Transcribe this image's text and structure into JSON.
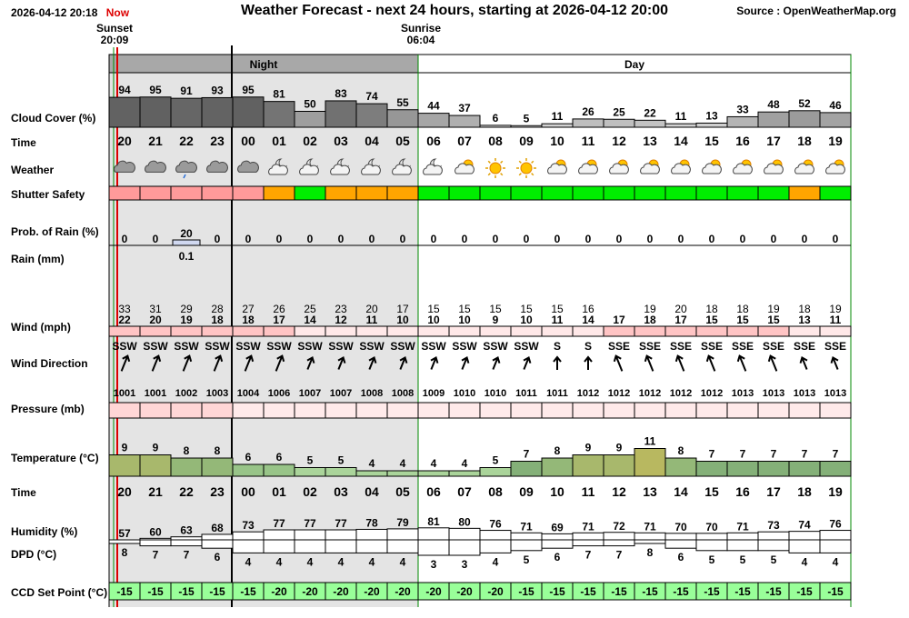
{
  "header": {
    "datetime": "2026-04-12 20:18",
    "now_label": "Now",
    "title": "Weather Forecast - next 24 hours, starting at 2026-04-12 20:00",
    "source": "Source : OpenWeatherMap.org",
    "sunset_label": "Sunset",
    "sunset_time": "20:09",
    "sunrise_label": "Sunrise",
    "sunrise_time": "06:04",
    "night_label": "Night",
    "day_label": "Day"
  },
  "row_labels": {
    "cloud": "Cloud Cover (%)",
    "time1": "Time",
    "weather": "Weather",
    "shutter": "Shutter Safety",
    "rain_prob": "Prob. of Rain (%)",
    "rain_mm": "Rain (mm)",
    "wind": "Wind (mph)",
    "wind_dir": "Wind Direction",
    "pressure": "Pressure (mb)",
    "temperature": "Temperature (°C)",
    "time2": "Time",
    "humidity": "Humidity (%)",
    "dpd": "DPD (°C)",
    "ccd": "CCD Set Point (°C)"
  },
  "colors": {
    "night_bg": "#e4e4e4",
    "shutter_red": "#ff9a9a",
    "shutter_orange": "#ffa500",
    "shutter_green": "#00ee00",
    "wind_high": "#ffc4c4",
    "wind_low": "#ffe8e8",
    "pressure_fill": "#ffeaea",
    "ccd_fill": "#99ff99",
    "now_line": "#dd0000",
    "sunset_line": "#008800"
  },
  "chart_data": {
    "type": "table",
    "hours": [
      "20",
      "21",
      "22",
      "23",
      "00",
      "01",
      "02",
      "03",
      "04",
      "05",
      "06",
      "07",
      "08",
      "09",
      "10",
      "11",
      "12",
      "13",
      "14",
      "15",
      "16",
      "17",
      "18",
      "19"
    ],
    "night": [
      true,
      true,
      true,
      true,
      true,
      true,
      true,
      true,
      true,
      true,
      false,
      false,
      false,
      false,
      false,
      false,
      false,
      false,
      false,
      false,
      false,
      false,
      false,
      false
    ],
    "cloud_cover": [
      94,
      95,
      91,
      93,
      95,
      81,
      50,
      83,
      74,
      55,
      44,
      37,
      6,
      5,
      11,
      26,
      25,
      22,
      11,
      13,
      33,
      48,
      52,
      46
    ],
    "weather_icons": [
      "cloud-icon",
      "cloud-icon",
      "rain-cloud-icon",
      "cloud-icon",
      "cloud-icon",
      "moon-cloud-icon",
      "moon-cloud-icon",
      "moon-cloud-icon",
      "moon-cloud-icon",
      "moon-cloud-icon",
      "moon-cloud-icon",
      "sun-cloud-icon",
      "sun-icon",
      "sun-icon",
      "sun-cloud-icon",
      "sun-cloud-icon",
      "sun-cloud-icon",
      "sun-cloud-icon",
      "sun-cloud-icon",
      "sun-cloud-icon",
      "sun-cloud-icon",
      "sun-cloud-icon",
      "sun-cloud-icon",
      "sun-cloud-icon"
    ],
    "shutter_safety": [
      "red",
      "red",
      "red",
      "red",
      "red",
      "orange",
      "green",
      "orange",
      "orange",
      "orange",
      "green",
      "green",
      "green",
      "green",
      "green",
      "green",
      "green",
      "green",
      "green",
      "green",
      "green",
      "green",
      "orange",
      "green"
    ],
    "rain_prob": [
      0,
      0,
      20,
      0,
      0,
      0,
      0,
      0,
      0,
      0,
      0,
      0,
      0,
      0,
      0,
      0,
      0,
      0,
      0,
      0,
      0,
      0,
      0,
      0
    ],
    "rain_mm": [
      "",
      "",
      "0.1",
      "",
      "",
      "",
      "",
      "",
      "",
      "",
      "",
      "",
      "",
      "",
      "",
      "",
      "",
      "",
      "",
      "",
      "",
      "",
      "",
      ""
    ],
    "wind_gust": [
      33,
      31,
      29,
      28,
      27,
      26,
      25,
      23,
      20,
      17,
      15,
      15,
      15,
      15,
      15,
      16,
      "",
      19,
      20,
      18,
      18,
      19,
      18,
      19
    ],
    "wind_speed": [
      22,
      20,
      19,
      18,
      18,
      17,
      14,
      12,
      11,
      10,
      10,
      10,
      9,
      10,
      11,
      14,
      17,
      18,
      17,
      15,
      15,
      15,
      13,
      11
    ],
    "wind_dir": [
      "SSW",
      "SSW",
      "SSW",
      "SSW",
      "SSW",
      "SSW",
      "SSW",
      "SSW",
      "SSW",
      "SSW",
      "SSW",
      "SSW",
      "SSW",
      "SSW",
      "S",
      "S",
      "SSE",
      "SSE",
      "SSE",
      "SSE",
      "SSE",
      "SSE",
      "SSE",
      "SSE"
    ],
    "wind_deg": [
      202,
      202,
      202,
      202,
      202,
      202,
      202,
      202,
      202,
      202,
      202,
      202,
      202,
      202,
      180,
      180,
      158,
      158,
      158,
      158,
      158,
      158,
      158,
      158
    ],
    "pressure": [
      1001,
      1001,
      1002,
      1003,
      1004,
      1006,
      1007,
      1007,
      1008,
      1008,
      1009,
      1010,
      1010,
      1011,
      1011,
      1012,
      1012,
      1012,
      1012,
      1012,
      1013,
      1013,
      1013,
      1013
    ],
    "temperature": [
      9,
      9,
      8,
      8,
      6,
      6,
      5,
      5,
      4,
      4,
      4,
      4,
      5,
      7,
      8,
      9,
      9,
      11,
      8,
      7,
      7,
      7,
      7,
      7
    ],
    "humidity": [
      57,
      60,
      63,
      68,
      73,
      77,
      77,
      77,
      78,
      79,
      81,
      80,
      76,
      71,
      69,
      71,
      72,
      71,
      70,
      70,
      71,
      73,
      74,
      76
    ],
    "dpd": [
      8,
      7,
      7,
      6,
      4,
      4,
      4,
      4,
      4,
      4,
      3,
      3,
      4,
      5,
      6,
      7,
      7,
      8,
      6,
      5,
      5,
      5,
      4,
      4
    ],
    "ccd_set_point": [
      -15,
      -15,
      -15,
      -15,
      -15,
      -20,
      -20,
      -20,
      -20,
      -20,
      -20,
      -20,
      -20,
      -15,
      -15,
      -15,
      -15,
      -15,
      -15,
      -15,
      -15,
      -15,
      -15,
      -15
    ]
  }
}
